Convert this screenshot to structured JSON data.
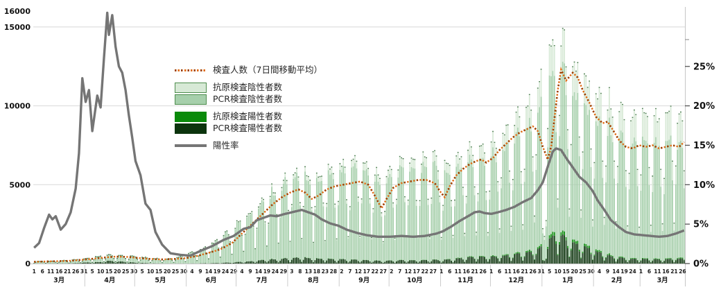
{
  "chart_data": {
    "type": "bar+line combo (stacked daily test-count bars, dotted 7-day-average line on left axis, positivity-rate line on right axis)",
    "title": "",
    "n_days": 392,
    "start_date_note": "x axis runs 3月1日 (Mar 1) through following 3月26日; ticks every 5 days; start day is Sunday",
    "start_weekday": 0,
    "legend": [
      {
        "label": "検査人数（7日間移動平均）",
        "swatch": "dotted-orange-line"
      },
      {
        "label": "抗原検査陰性者数",
        "swatch": "light-green-box"
      },
      {
        "label": "PCR検査陰性者数",
        "swatch": "medium-green-box"
      },
      {
        "label": "抗原検査陽性者数",
        "swatch": "green-box"
      },
      {
        "label": "PCR検査陽性者数",
        "swatch": "dark-green-box"
      },
      {
        "label": "陽性率",
        "swatch": "gray-line"
      }
    ],
    "colors": {
      "antigen_negative": "#d7e9d6",
      "pcr_negative": "#a6cfab",
      "antigen_positive": "#0a8a0a",
      "pcr_positive": "#0c340d",
      "bar_cap": "#356839",
      "negative_box_border": "#4c8c4c",
      "tests_line_bright": "#e06a10",
      "tests_line_dark": "#9e4004",
      "positivity_line": "#757575",
      "gridline": "#d8d8d8",
      "axis_line": "#c6c6c6",
      "tick_text": "#111111",
      "month_separator": "#cccccc"
    },
    "y_left_axis": {
      "tick_values": [
        0,
        5000,
        10000,
        15000,
        16000
      ],
      "tick_labels": [
        "0",
        "5000",
        "10000",
        "15000",
        "16000"
      ],
      "max": 16270
    },
    "y_right_axis": {
      "tick_values_pct": [
        0,
        5,
        10,
        15,
        20,
        25
      ],
      "tick_labels": [
        "0%",
        "5%",
        "10%",
        "15%",
        "20%",
        "25%"
      ],
      "extra_unlabeled_tick_pct": 28.4,
      "pct_equals_counts": 500
    },
    "x_axis_months": [
      {
        "name": "3月",
        "start": 0,
        "len": 31,
        "ticks": [
          1,
          6,
          11,
          16,
          21,
          26,
          31
        ]
      },
      {
        "name": "4月",
        "start": 31,
        "len": 30,
        "ticks": [
          5,
          10,
          15,
          20,
          25,
          30
        ]
      },
      {
        "name": "5月",
        "start": 61,
        "len": 31,
        "ticks": [
          5,
          10,
          15,
          20,
          25,
          30
        ]
      },
      {
        "name": "6月",
        "start": 92,
        "len": 30,
        "ticks": [
          4,
          9,
          14,
          19,
          24,
          29
        ]
      },
      {
        "name": "7月",
        "start": 122,
        "len": 31,
        "ticks": [
          4,
          9,
          14,
          19,
          24,
          29
        ]
      },
      {
        "name": "8月",
        "start": 153,
        "len": 31,
        "ticks": [
          3,
          8,
          13,
          18,
          23,
          28
        ]
      },
      {
        "name": "9月",
        "start": 184,
        "len": 30,
        "ticks": [
          2,
          7,
          12,
          17,
          22,
          27
        ]
      },
      {
        "name": "10月",
        "start": 214,
        "len": 31,
        "ticks": [
          2,
          7,
          12,
          17,
          22,
          27
        ]
      },
      {
        "name": "11月",
        "start": 245,
        "len": 30,
        "ticks": [
          1,
          6,
          11,
          16,
          21,
          26
        ]
      },
      {
        "name": "12月",
        "start": 275,
        "len": 31,
        "ticks": [
          1,
          6,
          11,
          16,
          21,
          26,
          31
        ]
      },
      {
        "name": "1月",
        "start": 306,
        "len": 31,
        "ticks": [
          5,
          10,
          15,
          20,
          25,
          30
        ]
      },
      {
        "name": "2月",
        "start": 337,
        "len": 28,
        "ticks": [
          4,
          9,
          14,
          19,
          24
        ]
      },
      {
        "name": "3月",
        "start": 365,
        "len": 27,
        "ticks": [
          1,
          6,
          11,
          16,
          21,
          26
        ]
      }
    ],
    "series": {
      "total_tests_weekday_envelope_anchors": [
        [
          0,
          160
        ],
        [
          7,
          170
        ],
        [
          14,
          190
        ],
        [
          21,
          240
        ],
        [
          28,
          300
        ],
        [
          35,
          420
        ],
        [
          44,
          580
        ],
        [
          51,
          560
        ],
        [
          58,
          520
        ],
        [
          65,
          430
        ],
        [
          72,
          360
        ],
        [
          80,
          330
        ],
        [
          86,
          420
        ],
        [
          92,
          650
        ],
        [
          99,
          880
        ],
        [
          106,
          1250
        ],
        [
          113,
          1750
        ],
        [
          120,
          2350
        ],
        [
          127,
          3100
        ],
        [
          134,
          3900
        ],
        [
          141,
          4600
        ],
        [
          148,
          5200
        ],
        [
          155,
          5900
        ],
        [
          162,
          6400
        ],
        [
          166,
          5300
        ],
        [
          169,
          5700
        ],
        [
          176,
          6100
        ],
        [
          183,
          6400
        ],
        [
          190,
          6500
        ],
        [
          197,
          6600
        ],
        [
          204,
          6200
        ],
        [
          208,
          5400
        ],
        [
          212,
          6100
        ],
        [
          219,
          6500
        ],
        [
          226,
          6700
        ],
        [
          233,
          6800
        ],
        [
          240,
          6900
        ],
        [
          245,
          6400
        ],
        [
          251,
          6900
        ],
        [
          257,
          7300
        ],
        [
          263,
          7600
        ],
        [
          269,
          7700
        ],
        [
          275,
          8000
        ],
        [
          282,
          8600
        ],
        [
          289,
          9300
        ],
        [
          296,
          10200
        ],
        [
          302,
          11200
        ],
        [
          307,
          12400
        ],
        [
          311,
          14600
        ],
        [
          313,
          15400
        ],
        [
          316,
          14800
        ],
        [
          320,
          13900
        ],
        [
          324,
          13200
        ],
        [
          328,
          12500
        ],
        [
          332,
          12000
        ],
        [
          336,
          11400
        ],
        [
          341,
          10900
        ],
        [
          347,
          10400
        ],
        [
          353,
          9900
        ],
        [
          359,
          9600
        ],
        [
          364,
          9600
        ],
        [
          369,
          9400
        ],
        [
          373,
          9200
        ],
        [
          377,
          9400
        ],
        [
          381,
          9800
        ],
        [
          384,
          10300
        ],
        [
          387,
          9700
        ],
        [
          391,
          10000
        ]
      ],
      "weekday_factors_sun_to_sat": [
        0.26,
        0.6,
        0.97,
        1.0,
        0.99,
        0.95,
        0.62
      ],
      "holiday_low_factor_overrides": {
        "306": 0.18,
        "307": 0.15,
        "308": 0.2
      },
      "bar_jitter_amplitude": 0.07,
      "tests_7day_avg_anchors": [
        [
          0,
          110
        ],
        [
          7,
          130
        ],
        [
          14,
          150
        ],
        [
          21,
          170
        ],
        [
          28,
          230
        ],
        [
          35,
          300
        ],
        [
          42,
          380
        ],
        [
          49,
          440
        ],
        [
          56,
          420
        ],
        [
          63,
          350
        ],
        [
          70,
          290
        ],
        [
          77,
          260
        ],
        [
          84,
          290
        ],
        [
          91,
          340
        ],
        [
          98,
          480
        ],
        [
          105,
          680
        ],
        [
          112,
          900
        ],
        [
          119,
          1300
        ],
        [
          124,
          1800
        ],
        [
          129,
          2300
        ],
        [
          134,
          2800
        ],
        [
          139,
          3300
        ],
        [
          144,
          3800
        ],
        [
          149,
          4200
        ],
        [
          154,
          4500
        ],
        [
          159,
          4700
        ],
        [
          163,
          4500
        ],
        [
          167,
          4100
        ],
        [
          171,
          4300
        ],
        [
          176,
          4700
        ],
        [
          181,
          4900
        ],
        [
          186,
          5000
        ],
        [
          191,
          5100
        ],
        [
          196,
          5200
        ],
        [
          201,
          5000
        ],
        [
          205,
          4300
        ],
        [
          209,
          3500
        ],
        [
          212,
          4100
        ],
        [
          216,
          4800
        ],
        [
          221,
          5100
        ],
        [
          226,
          5200
        ],
        [
          231,
          5300
        ],
        [
          236,
          5300
        ],
        [
          241,
          5100
        ],
        [
          244,
          4600
        ],
        [
          247,
          4200
        ],
        [
          250,
          4900
        ],
        [
          254,
          5600
        ],
        [
          258,
          6000
        ],
        [
          262,
          6300
        ],
        [
          266,
          6500
        ],
        [
          269,
          6600
        ],
        [
          272,
          6400
        ],
        [
          276,
          6700
        ],
        [
          280,
          7200
        ],
        [
          284,
          7600
        ],
        [
          288,
          8000
        ],
        [
          292,
          8300
        ],
        [
          296,
          8500
        ],
        [
          300,
          8700
        ],
        [
          303,
          8400
        ],
        [
          306,
          7400
        ],
        [
          309,
          6600
        ],
        [
          311,
          7400
        ],
        [
          313,
          9200
        ],
        [
          315,
          11000
        ],
        [
          317,
          12300
        ],
        [
          320,
          11600
        ],
        [
          324,
          12100
        ],
        [
          327,
          11800
        ],
        [
          330,
          11000
        ],
        [
          334,
          10200
        ],
        [
          338,
          9300
        ],
        [
          342,
          8900
        ],
        [
          345,
          9000
        ],
        [
          348,
          8500
        ],
        [
          352,
          7800
        ],
        [
          356,
          7400
        ],
        [
          360,
          7300
        ],
        [
          364,
          7500
        ],
        [
          368,
          7400
        ],
        [
          372,
          7500
        ],
        [
          376,
          7300
        ],
        [
          380,
          7400
        ],
        [
          384,
          7500
        ],
        [
          388,
          7400
        ],
        [
          391,
          7700
        ]
      ],
      "positivity_rate_pct_anchors": [
        [
          0,
          2.0
        ],
        [
          3,
          2.6
        ],
        [
          6,
          4.5
        ],
        [
          9,
          6.2
        ],
        [
          11,
          5.6
        ],
        [
          13,
          6.0
        ],
        [
          16,
          4.3
        ],
        [
          19,
          5.0
        ],
        [
          22,
          6.5
        ],
        [
          25,
          9.5
        ],
        [
          27,
          14
        ],
        [
          29,
          23.5
        ],
        [
          31,
          20.5
        ],
        [
          33,
          22
        ],
        [
          35,
          16.8
        ],
        [
          38,
          21.3
        ],
        [
          40,
          19.8
        ],
        [
          42,
          26
        ],
        [
          44,
          31.8
        ],
        [
          45,
          29
        ],
        [
          47,
          31.5
        ],
        [
          49,
          27.5
        ],
        [
          51,
          25
        ],
        [
          53,
          24.2
        ],
        [
          55,
          22
        ],
        [
          57,
          18.8
        ],
        [
          59,
          16
        ],
        [
          61,
          13
        ],
        [
          64,
          11.2
        ],
        [
          67,
          7.6
        ],
        [
          70,
          6.8
        ],
        [
          73,
          4.0
        ],
        [
          77,
          2.4
        ],
        [
          82,
          1.3
        ],
        [
          88,
          1.1
        ],
        [
          94,
          1.0
        ],
        [
          100,
          1.6
        ],
        [
          107,
          2.2
        ],
        [
          114,
          3.0
        ],
        [
          120,
          3.5
        ],
        [
          126,
          4.4
        ],
        [
          130,
          4.6
        ],
        [
          134,
          5.5
        ],
        [
          138,
          5.8
        ],
        [
          142,
          6.1
        ],
        [
          146,
          6.0
        ],
        [
          151,
          6.3
        ],
        [
          157,
          6.6
        ],
        [
          161,
          6.8
        ],
        [
          165,
          6.5
        ],
        [
          169,
          6.2
        ],
        [
          173,
          5.6
        ],
        [
          178,
          5.1
        ],
        [
          183,
          4.8
        ],
        [
          188,
          4.3
        ],
        [
          194,
          3.9
        ],
        [
          200,
          3.6
        ],
        [
          207,
          3.4
        ],
        [
          214,
          3.4
        ],
        [
          221,
          3.5
        ],
        [
          228,
          3.4
        ],
        [
          235,
          3.5
        ],
        [
          242,
          3.8
        ],
        [
          246,
          4.1
        ],
        [
          251,
          4.7
        ],
        [
          256,
          5.4
        ],
        [
          261,
          6.0
        ],
        [
          265,
          6.5
        ],
        [
          268,
          6.6
        ],
        [
          271,
          6.4
        ],
        [
          275,
          6.3
        ],
        [
          279,
          6.5
        ],
        [
          284,
          6.8
        ],
        [
          289,
          7.2
        ],
        [
          294,
          7.8
        ],
        [
          299,
          8.3
        ],
        [
          303,
          9.3
        ],
        [
          306,
          10.3
        ],
        [
          309,
          12.3
        ],
        [
          312,
          14.2
        ],
        [
          314,
          14.6
        ],
        [
          317,
          14.4
        ],
        [
          320,
          13.4
        ],
        [
          324,
          12.2
        ],
        [
          328,
          11.0
        ],
        [
          332,
          10.3
        ],
        [
          336,
          9.2
        ],
        [
          339,
          8.0
        ],
        [
          343,
          6.8
        ],
        [
          347,
          5.5
        ],
        [
          352,
          4.6
        ],
        [
          356,
          4.0
        ],
        [
          361,
          3.7
        ],
        [
          366,
          3.6
        ],
        [
          371,
          3.5
        ],
        [
          376,
          3.4
        ],
        [
          381,
          3.5
        ],
        [
          386,
          3.8
        ],
        [
          391,
          4.2
        ]
      ],
      "antigen_share_anchors": [
        [
          0,
          0
        ],
        [
          100,
          0.02
        ],
        [
          150,
          0.05
        ],
        [
          200,
          0.08
        ],
        [
          245,
          0.1
        ],
        [
          275,
          0.13
        ],
        [
          306,
          0.16
        ],
        [
          340,
          0.18
        ],
        [
          391,
          0.2
        ]
      ],
      "antigen_positive_sub_share": 0.7
    }
  }
}
